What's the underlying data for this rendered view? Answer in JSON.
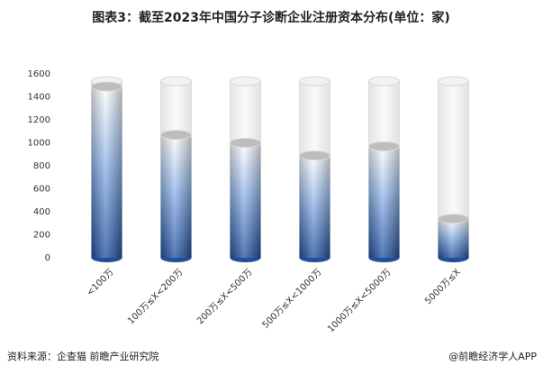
{
  "chart_data": {
    "type": "bar",
    "title": "图表3：截至2023年中国分子诊断企业注册资本分布(单位：家)",
    "categories": [
      "<100万",
      "100万≤X<200万",
      "200万≤X<500万",
      "500万≤X<1000万",
      "1000万≤X<5000万",
      "5000万≤X"
    ],
    "values": [
      1490,
      1070,
      1000,
      890,
      970,
      340
    ],
    "color": "#1f4e9c",
    "ylim": [
      0,
      1600
    ],
    "yticks": [
      0,
      200,
      400,
      600,
      800,
      1000,
      1200,
      1400,
      1600
    ],
    "grid": false,
    "source": "资料来源：企查猫 前瞻产业研究院",
    "credit": "@前瞻经济学人APP"
  }
}
